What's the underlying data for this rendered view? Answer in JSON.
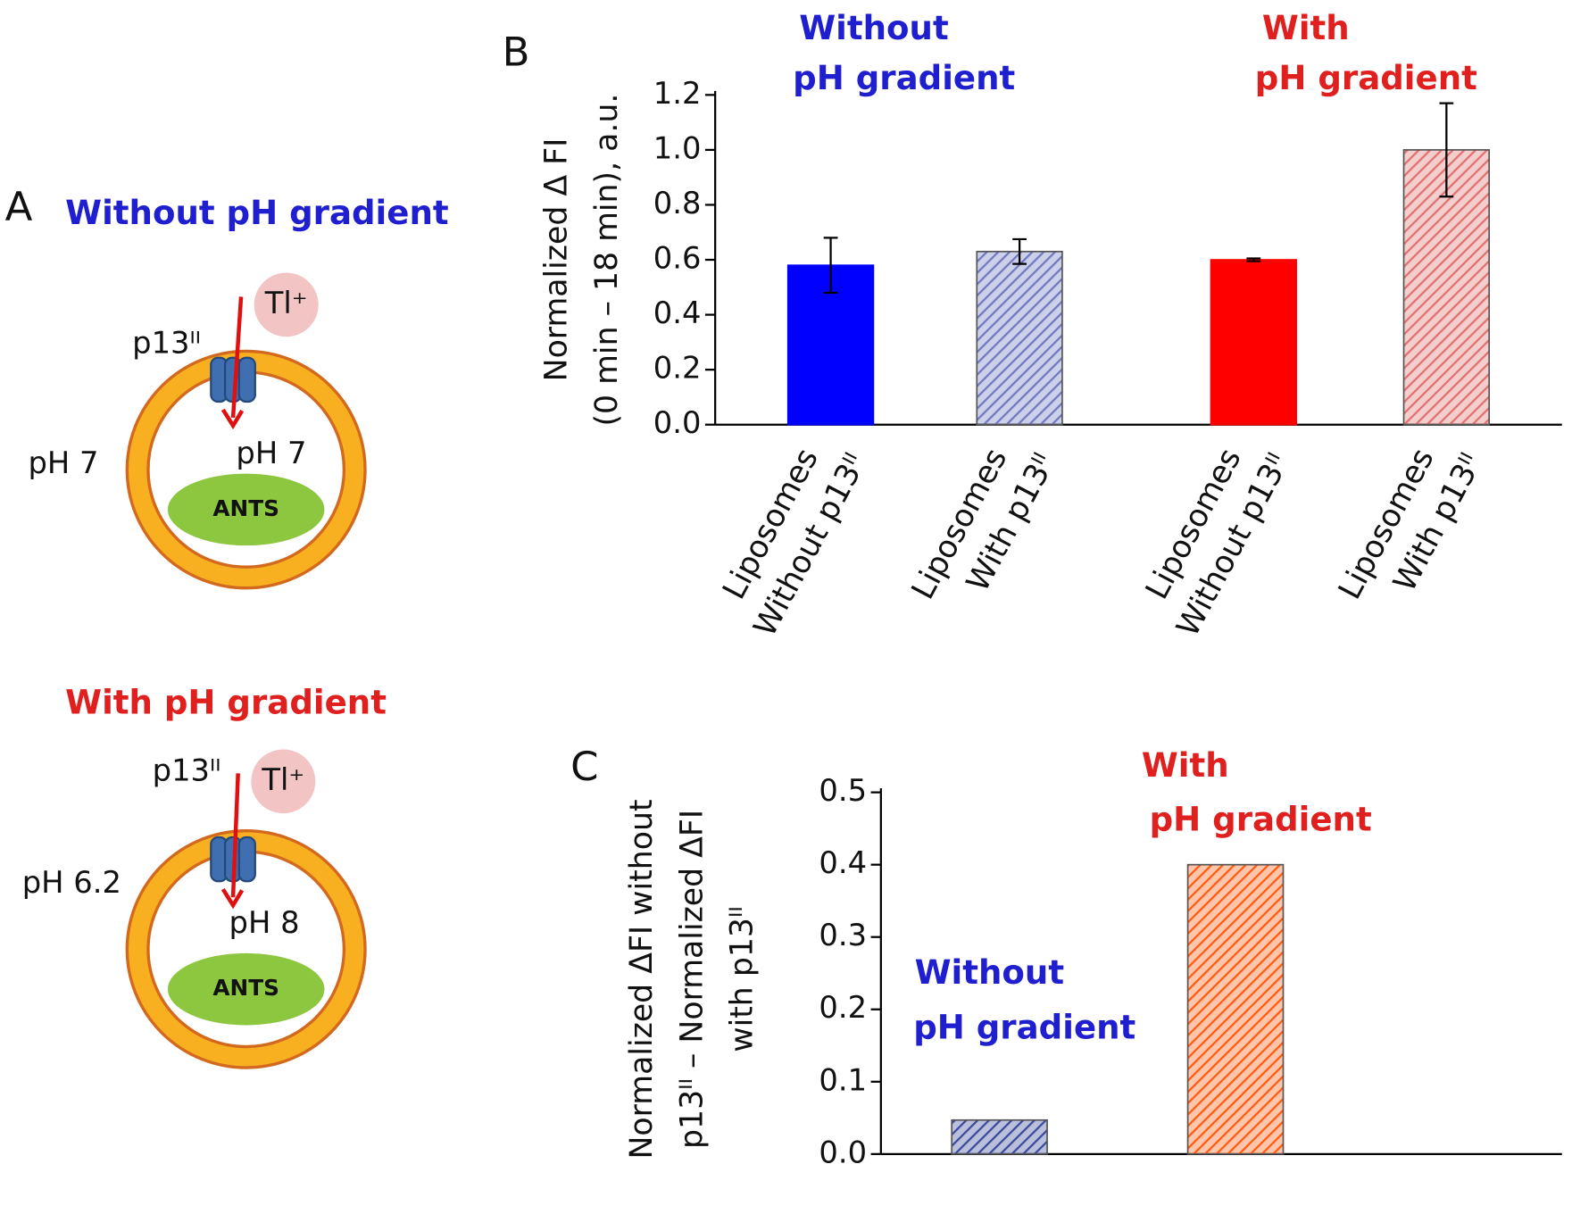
{
  "diagram": {
    "label": "A",
    "panels": [
      {
        "title": "Without pH gradient",
        "color": "#1f1fd0",
        "ion": "Tl⁺",
        "channel": "p13ᴵᴵ",
        "outside": "pH 7",
        "inside": "pH 7",
        "dye": "ANTS"
      },
      {
        "title": "With pH gradient",
        "color": "#e0201e",
        "ion": "Tl⁺",
        "channel": "p13ᴵᴵ",
        "outside": "pH 6.2",
        "inside": "pH 8",
        "dye": "ANTS"
      }
    ]
  },
  "chart_data": [
    {
      "type": "bar",
      "label": "B",
      "ylabel": [
        "Normalized Δ FI",
        "(0 min – 18 min), a.u."
      ],
      "categories": [
        [
          "Liposomes",
          "Without p13ᴵᴵ"
        ],
        [
          "Liposomes",
          "With p13ᴵᴵ"
        ],
        [
          "Liposomes",
          "Without p13ᴵᴵ"
        ],
        [
          "Liposomes",
          "With p13ᴵᴵ"
        ]
      ],
      "values": [
        0.58,
        0.63,
        0.6,
        1.0
      ],
      "errors": [
        0.1,
        0.045,
        0.005,
        0.17
      ],
      "colors": [
        "#0000ff",
        "#6f78c0",
        "#ff0000",
        "#e07070"
      ],
      "hatch": [
        false,
        true,
        false,
        true
      ],
      "annotations": [
        {
          "text": [
            "Without",
            "pH gradient"
          ],
          "color": "#1f1fd0"
        },
        {
          "text": [
            "With",
            "pH gradient"
          ],
          "color": "#e0201e"
        }
      ],
      "ylim": [
        0,
        1.2
      ],
      "yticks": [
        {
          "value": 0,
          "label": "0.0"
        },
        0.2,
        0.4,
        0.6,
        0.8,
        {
          "value": 1,
          "label": "1.0"
        },
        1.2
      ]
    },
    {
      "type": "bar",
      "label": "C",
      "ylabel": [
        "Normalized ΔFI without",
        "p13ᴵᴵ – Normalized ΔFI",
        "with p13ᴵᴵ"
      ],
      "categories": [
        null,
        null
      ],
      "values": [
        0.047,
        0.4
      ],
      "colors": [
        "#3a4a9a",
        "#ff5a10"
      ],
      "hatch": [
        true,
        true
      ],
      "annotations": [
        {
          "text": [
            "Without",
            "pH gradient"
          ],
          "color": "#1f1fd0"
        },
        {
          "text": [
            "With",
            "pH gradient"
          ],
          "color": "#e0201e"
        }
      ],
      "ylim": [
        0,
        0.5
      ],
      "yticks": [
        {
          "value": 0,
          "label": "0.0"
        },
        0.1,
        0.2,
        0.3,
        0.4,
        0.5
      ]
    }
  ]
}
